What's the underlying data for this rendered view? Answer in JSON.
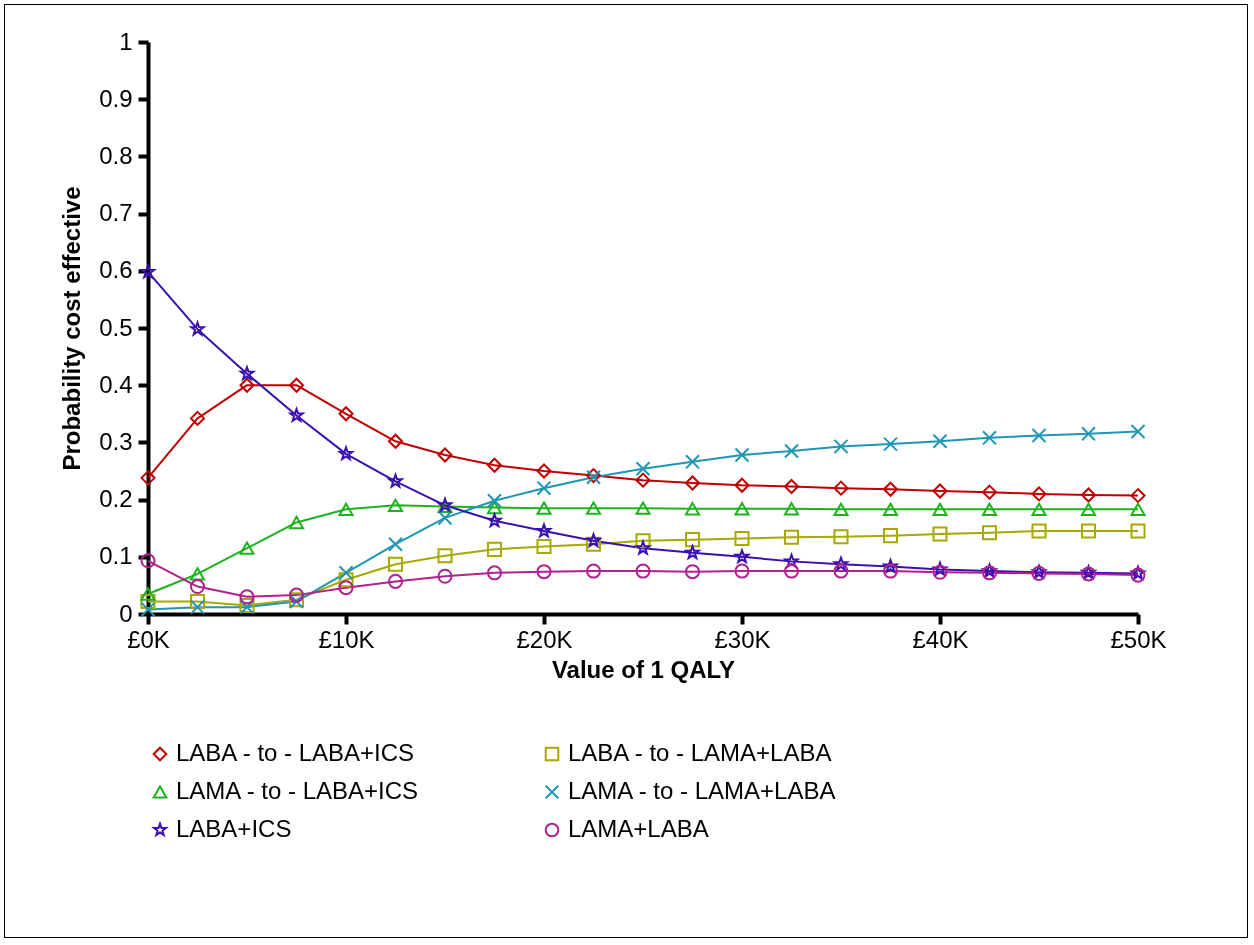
{
  "chart_data": {
    "type": "line",
    "xlabel": "Value of 1 QALY",
    "ylabel": "Probability cost effective",
    "x": [
      0,
      2.5,
      5,
      7.5,
      10,
      12.5,
      15,
      17.5,
      20,
      22.5,
      25,
      27.5,
      30,
      32.5,
      35,
      37.5,
      40,
      42.5,
      45,
      47.5,
      50
    ],
    "xlim": [
      0,
      50
    ],
    "xticks": [
      {
        "value": 0,
        "label": "£0K"
      },
      {
        "value": 10,
        "label": "£10K"
      },
      {
        "value": 20,
        "label": "£20K"
      },
      {
        "value": 30,
        "label": "£30K"
      },
      {
        "value": 40,
        "label": "£40K"
      },
      {
        "value": 50,
        "label": "£50K"
      }
    ],
    "ylim": [
      0,
      1
    ],
    "yticks": [
      0,
      0.1,
      0.2,
      0.3,
      0.4,
      0.5,
      0.6,
      0.7,
      0.8,
      0.9,
      1
    ],
    "legend": "bottom",
    "series": [
      {
        "name": "LABA - to - LABA+ICS",
        "color": "#c00000",
        "marker": "diamond",
        "values": [
          0.238,
          0.342,
          0.4,
          0.4,
          0.35,
          0.302,
          0.278,
          0.26,
          0.25,
          0.242,
          0.234,
          0.229,
          0.225,
          0.223,
          0.22,
          0.218,
          0.215,
          0.213,
          0.21,
          0.208,
          0.207
        ]
      },
      {
        "name": "LABA - to - LAMA+LABA",
        "color": "#a8a800",
        "marker": "square",
        "values": [
          0.022,
          0.022,
          0.015,
          0.025,
          0.06,
          0.087,
          0.102,
          0.113,
          0.118,
          0.122,
          0.128,
          0.13,
          0.132,
          0.134,
          0.135,
          0.137,
          0.14,
          0.142,
          0.145,
          0.145,
          0.145
        ]
      },
      {
        "name": "LAMA - to - LABA+ICS",
        "color": "#1fb21f",
        "marker": "triangle",
        "values": [
          0.035,
          0.07,
          0.115,
          0.16,
          0.183,
          0.19,
          0.188,
          0.186,
          0.185,
          0.185,
          0.185,
          0.184,
          0.184,
          0.184,
          0.183,
          0.183,
          0.183,
          0.183,
          0.183,
          0.183,
          0.183
        ]
      },
      {
        "name": "LAMA - to - LAMA+LABA",
        "color": "#1e96b4",
        "marker": "cross",
        "values": [
          0.008,
          0.012,
          0.012,
          0.022,
          0.072,
          0.122,
          0.168,
          0.198,
          0.22,
          0.239,
          0.254,
          0.266,
          0.278,
          0.285,
          0.293,
          0.297,
          0.302,
          0.308,
          0.312,
          0.315,
          0.319
        ]
      },
      {
        "name": "LABA+ICS",
        "color": "#3a10b0",
        "marker": "star",
        "values": [
          0.598,
          0.498,
          0.42,
          0.347,
          0.28,
          0.232,
          0.19,
          0.163,
          0.145,
          0.128,
          0.115,
          0.107,
          0.1,
          0.092,
          0.087,
          0.083,
          0.078,
          0.075,
          0.073,
          0.072,
          0.071
        ]
      },
      {
        "name": "LAMA+LABA",
        "color": "#b0208f",
        "marker": "circle",
        "values": [
          0.093,
          0.048,
          0.03,
          0.033,
          0.046,
          0.057,
          0.066,
          0.072,
          0.074,
          0.075,
          0.075,
          0.074,
          0.075,
          0.075,
          0.075,
          0.075,
          0.073,
          0.072,
          0.071,
          0.07,
          0.068
        ]
      }
    ]
  }
}
